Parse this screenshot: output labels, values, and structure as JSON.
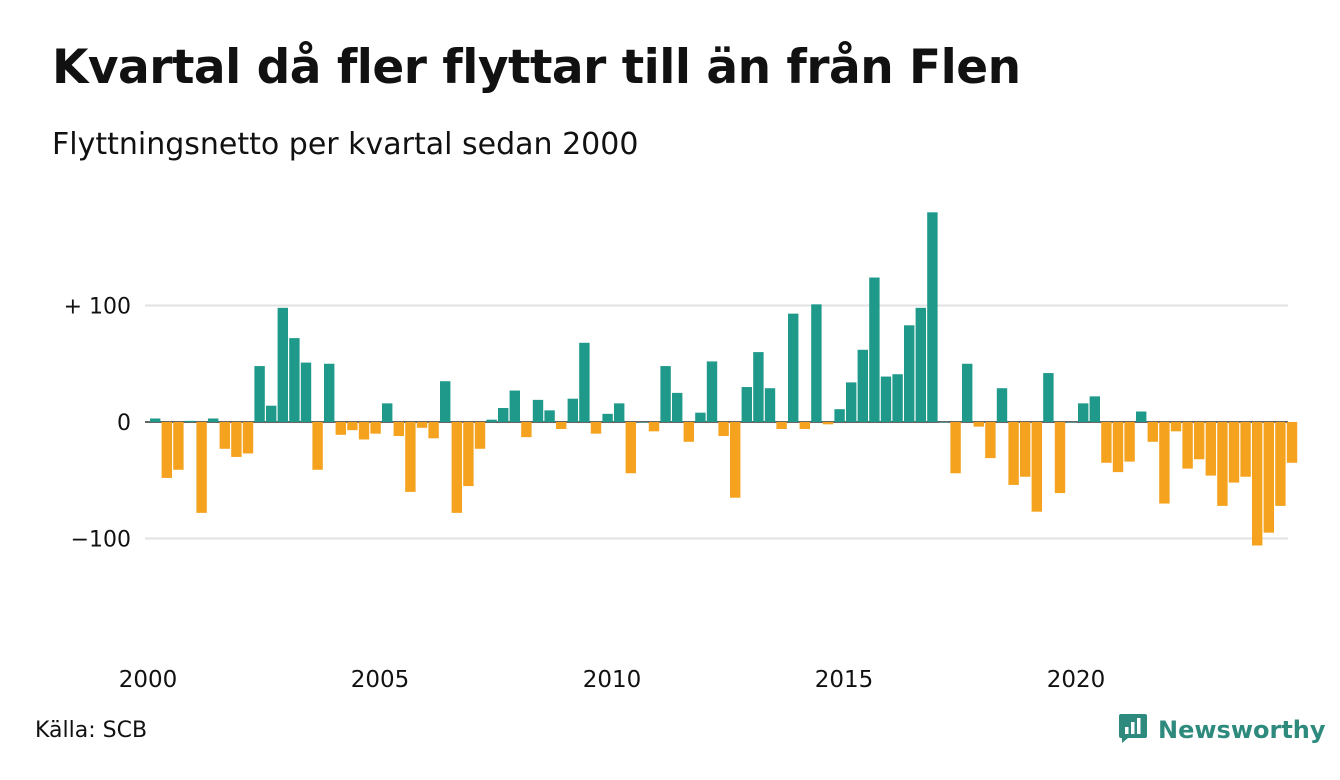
{
  "title": "Kvartal då fler flyttar till än från Flen",
  "subtitle": "Flyttningsnetto per kvartal sedan 2000",
  "source": "Källa: SCB",
  "brand": {
    "name": "Newsworthy",
    "icon": "newsworthy-logo-icon",
    "color": "#2f8a7e"
  },
  "chart_data": {
    "type": "bar",
    "x_start": "2000 Q1",
    "x_ticks": [
      "2000",
      "2005",
      "2010",
      "2015",
      "2020"
    ],
    "y_ticks": [
      {
        "value": 100,
        "label": "+ 100"
      },
      {
        "value": 0,
        "label": "0"
      },
      {
        "value": -100,
        "label": "−100"
      }
    ],
    "ylim": [
      -150,
      180
    ],
    "grid": true,
    "colors": {
      "positive": "#1f998a",
      "negative": "#f5a21e",
      "grid": "#e2e2e2"
    },
    "values": [
      3,
      -48,
      -41,
      1,
      -78,
      3,
      -23,
      -30,
      -27,
      48,
      14,
      98,
      72,
      51,
      -41,
      50,
      -11,
      -7,
      -15,
      -10,
      16,
      -12,
      -60,
      -5,
      -14,
      35,
      -78,
      -55,
      -23,
      2,
      12,
      27,
      -13,
      19,
      10,
      -6,
      20,
      68,
      -10,
      7,
      16,
      -44,
      0,
      -8,
      48,
      25,
      -17,
      8,
      52,
      -12,
      -65,
      30,
      60,
      29,
      -6,
      93,
      -6,
      101,
      -2,
      11,
      34,
      62,
      124,
      39,
      41,
      83,
      98,
      180,
      0,
      -44,
      50,
      -4,
      -31,
      29,
      -54,
      -47,
      -77,
      42,
      -61,
      0,
      16,
      22,
      -35,
      -43,
      -34,
      9,
      -17,
      -70,
      -8,
      -40,
      -32,
      -46,
      -72,
      -52,
      -47,
      -106,
      -95,
      -72,
      -35
    ]
  }
}
